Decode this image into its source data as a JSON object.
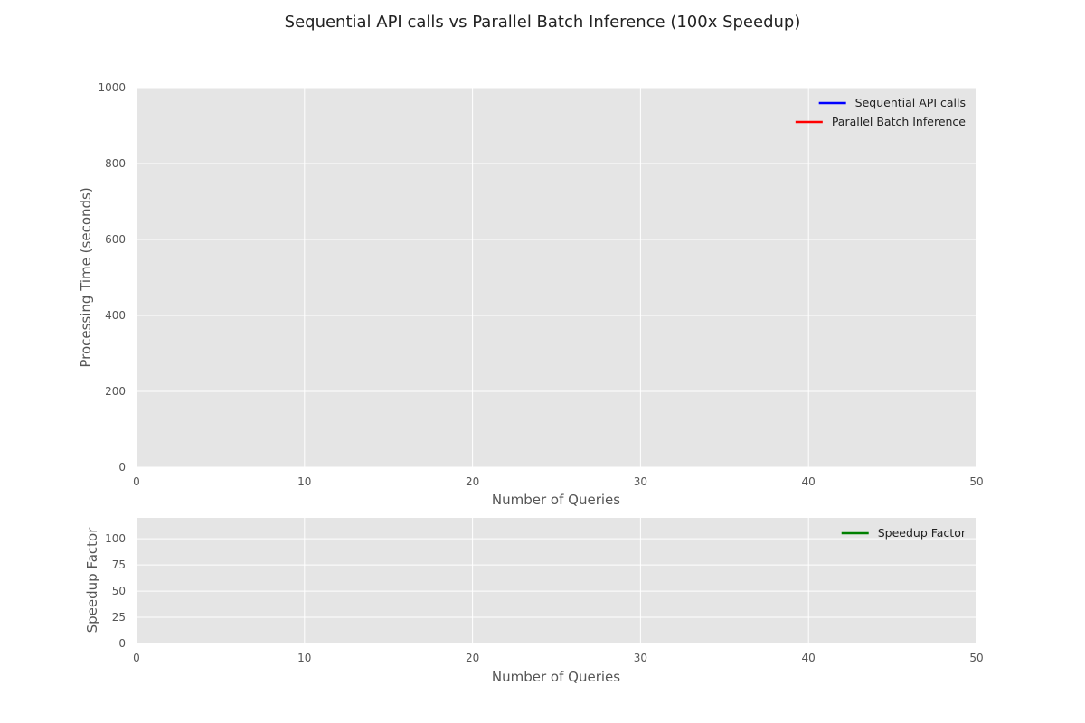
{
  "title": "Sequential API calls vs Parallel Batch Inference (100x Speedup)",
  "colors": {
    "axes_background": "#e5e5e5",
    "grid": "#ffffff",
    "sequential": "#0000ff",
    "parallel": "#ff0000",
    "speedup": "#008000"
  },
  "chart_data": [
    {
      "type": "line",
      "xlabel": "Number of Queries",
      "ylabel": "Processing Time (seconds)",
      "xlim": [
        0,
        50
      ],
      "ylim": [
        0,
        1000
      ],
      "xticks": [
        "0",
        "10",
        "20",
        "30",
        "40",
        "50"
      ],
      "yticks": [
        "0",
        "200",
        "400",
        "600",
        "800",
        "1000"
      ],
      "xtick_values": [
        0,
        10,
        20,
        30,
        40,
        50
      ],
      "ytick_values": [
        0,
        200,
        400,
        600,
        800,
        1000
      ],
      "grid": true,
      "legend_position": "top-right",
      "series": [
        {
          "name": "Sequential API calls",
          "color": "#0000ff",
          "x": [],
          "y": []
        },
        {
          "name": "Parallel Batch Inference",
          "color": "#ff0000",
          "x": [],
          "y": []
        }
      ]
    },
    {
      "type": "line",
      "xlabel": "Number of Queries",
      "ylabel": "Speedup Factor",
      "xlim": [
        0,
        50
      ],
      "ylim": [
        0,
        120
      ],
      "xticks": [
        "0",
        "10",
        "20",
        "30",
        "40",
        "50"
      ],
      "yticks": [
        "0",
        "25",
        "50",
        "75",
        "100"
      ],
      "xtick_values": [
        0,
        10,
        20,
        30,
        40,
        50
      ],
      "ytick_values": [
        0,
        25,
        50,
        75,
        100
      ],
      "grid": true,
      "legend_position": "top-right",
      "series": [
        {
          "name": "Speedup Factor",
          "color": "#008000",
          "x": [],
          "y": []
        }
      ]
    }
  ]
}
